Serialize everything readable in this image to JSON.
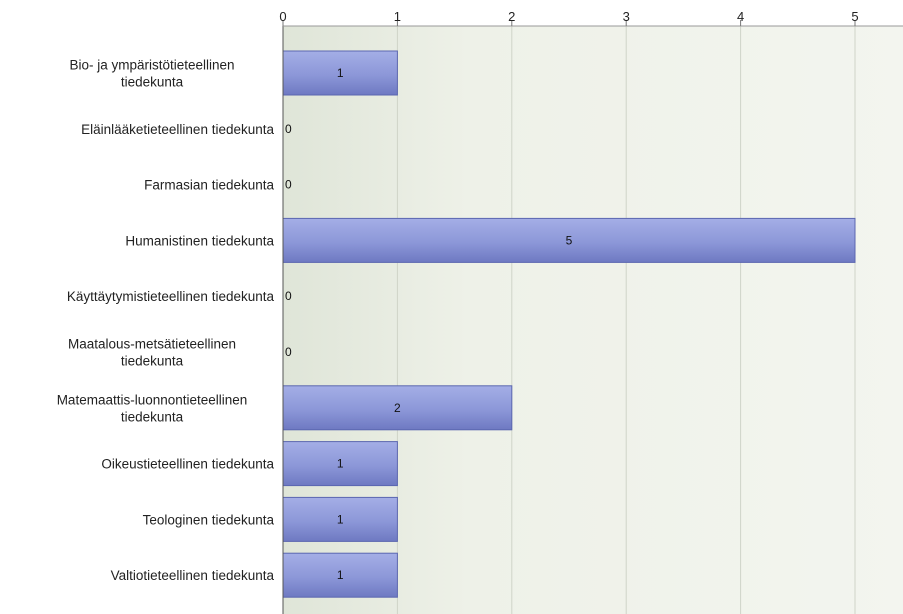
{
  "chart_data": {
    "type": "bar",
    "orientation": "horizontal",
    "categories": [
      [
        "Bio- ja ympäristötieteellinen",
        "tiedekunta"
      ],
      [
        "Eläinlääketieteellinen tiedekunta"
      ],
      [
        "Farmasian tiedekunta"
      ],
      [
        "Humanistinen tiedekunta"
      ],
      [
        "Käyttäytymistieteellinen tiedekunta"
      ],
      [
        "Maatalous-metsätieteellinen",
        "tiedekunta"
      ],
      [
        "Matemaattis-luonnontieteellinen",
        "tiedekunta"
      ],
      [
        "Oikeustieteellinen tiedekunta"
      ],
      [
        "Teologinen tiedekunta"
      ],
      [
        "Valtiotieteellinen tiedekunta"
      ]
    ],
    "values": [
      1,
      0,
      0,
      5,
      0,
      0,
      2,
      1,
      1,
      1
    ],
    "xticks": [
      0,
      1,
      2,
      3,
      4,
      5
    ],
    "xlim": [
      0,
      5.4
    ],
    "axis_position": "top",
    "grid": true,
    "colors": {
      "bar_fill": "#8c97d8",
      "bar_edge": "#5b66b0",
      "plot_bg": "#eef1e8",
      "grid": "#cfd4c8",
      "axis": "#555555"
    }
  }
}
